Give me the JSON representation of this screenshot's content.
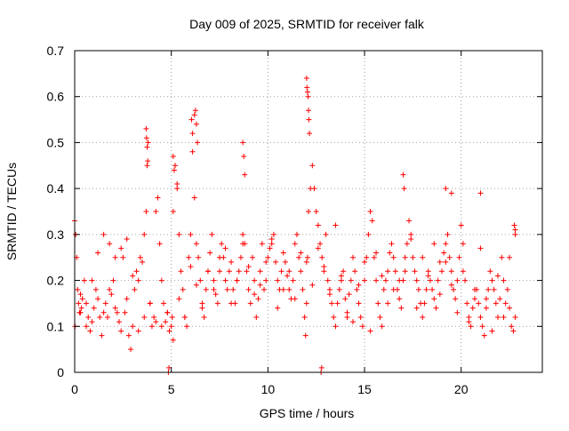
{
  "chart_data": {
    "type": "scatter",
    "title": "Day 009 of 2025, SRMTID for receiver falk",
    "xlabel": "GPS time / hours",
    "ylabel": "SRMTID / TECUs",
    "xlim": [
      0,
      24.2
    ],
    "ylim": [
      0,
      0.7
    ],
    "xticks": [
      0,
      5,
      10,
      15,
      20
    ],
    "xtick_labels": [
      "0",
      "5",
      "10",
      "15",
      "20"
    ],
    "yticks": [
      0,
      0.1,
      0.2,
      0.3,
      0.4,
      0.5,
      0.6,
      0.7
    ],
    "ytick_labels": [
      "0",
      "0.1",
      "0.2",
      "0.3",
      "0.4",
      "0.5",
      "0.6",
      "0.7"
    ],
    "grid": true,
    "marker": "+",
    "marker_color": "#ff0000",
    "series": [
      {
        "name": "SRMTID",
        "x": [
          0.0,
          0.05,
          0.1,
          0.15,
          0.2,
          0.25,
          0.3,
          0.35,
          0.4,
          0.5,
          0.6,
          0.7,
          0.8,
          0.9,
          1.0,
          1.1,
          1.2,
          1.3,
          1.4,
          1.5,
          1.6,
          1.7,
          1.8,
          1.9,
          2.0,
          2.1,
          2.2,
          2.3,
          2.4,
          2.5,
          2.6,
          2.7,
          2.8,
          2.9,
          3.0,
          3.1,
          3.2,
          3.3,
          3.4,
          3.5,
          3.6,
          3.7,
          3.75,
          3.8,
          3.9,
          4.0,
          4.1,
          4.2,
          4.3,
          4.4,
          4.5,
          4.6,
          4.7,
          4.8,
          4.9,
          5.0,
          5.05,
          5.1,
          5.2,
          5.3,
          5.4,
          5.5,
          5.6,
          5.7,
          5.8,
          5.9,
          6.0,
          6.1,
          6.2,
          6.3,
          6.4,
          6.5,
          6.6,
          6.7,
          6.8,
          6.9,
          7.0,
          7.1,
          7.2,
          7.3,
          7.4,
          7.5,
          7.6,
          7.7,
          7.8,
          7.9,
          8.0,
          8.1,
          8.2,
          8.3,
          8.4,
          8.5,
          8.6,
          8.7,
          8.8,
          8.9,
          9.0,
          9.1,
          9.2,
          9.3,
          9.4,
          9.5,
          9.6,
          9.7,
          9.8,
          9.9,
          10.0,
          10.1,
          10.2,
          10.3,
          10.4,
          10.5,
          10.6,
          10.7,
          10.8,
          10.9,
          11.0,
          11.1,
          11.2,
          11.3,
          11.4,
          11.5,
          11.6,
          11.7,
          11.8,
          11.9,
          11.95,
          12.0,
          12.05,
          12.1,
          12.2,
          12.3,
          12.4,
          12.5,
          12.6,
          12.7,
          12.8,
          12.9,
          13.0,
          13.1,
          13.2,
          13.3,
          13.4,
          13.5,
          13.6,
          13.7,
          13.8,
          13.9,
          14.0,
          14.1,
          14.2,
          14.3,
          14.4,
          14.5,
          14.6,
          14.7,
          14.8,
          14.9,
          15.0,
          15.1,
          15.2,
          15.3,
          15.4,
          15.5,
          15.6,
          15.7,
          15.8,
          15.9,
          16.0,
          16.1,
          16.2,
          16.3,
          16.4,
          16.5,
          16.6,
          16.7,
          16.8,
          16.9,
          17.0,
          17.1,
          17.2,
          17.3,
          17.4,
          17.5,
          17.6,
          17.7,
          17.8,
          17.9,
          18.0,
          18.1,
          18.2,
          18.3,
          18.4,
          18.5,
          18.6,
          18.7,
          18.8,
          18.9,
          19.0,
          19.1,
          19.2,
          19.3,
          19.4,
          19.5,
          19.6,
          19.7,
          19.8,
          19.9,
          20.0,
          20.1,
          20.2,
          20.3,
          20.4,
          20.5,
          20.6,
          20.7,
          20.8,
          20.9,
          21.0,
          21.1,
          21.2,
          21.3,
          21.4,
          21.5,
          21.6,
          21.7,
          21.8,
          21.9,
          22.0,
          22.1,
          22.2,
          22.3,
          22.4,
          22.5,
          22.6,
          22.7,
          22.8,
          0.02,
          0.3,
          0.6,
          0.9,
          1.2,
          1.5,
          1.8,
          2.1,
          2.4,
          2.7,
          3.0,
          3.3,
          3.6,
          3.9,
          4.2,
          4.5,
          4.8,
          5.1,
          5.4,
          5.7,
          6.0,
          6.3,
          6.6,
          6.9,
          7.2,
          7.5,
          7.8,
          8.1,
          8.4,
          8.7,
          9.0,
          9.3,
          9.6,
          9.9,
          10.2,
          10.5,
          10.8,
          11.1,
          11.4,
          11.7,
          12.0,
          12.3,
          12.6,
          12.9,
          13.2,
          13.5,
          13.8,
          14.1,
          14.4,
          14.7,
          15.0,
          15.3,
          15.6,
          15.9,
          16.2,
          16.5,
          16.8,
          17.1,
          17.4,
          17.7,
          18.0,
          18.3,
          18.6,
          18.9,
          19.2,
          19.5,
          19.8,
          20.1,
          20.4,
          20.7,
          21.0,
          21.3,
          21.6,
          21.9,
          22.2,
          22.5,
          22.8,
          3.7,
          3.72,
          3.75,
          3.78,
          5.1,
          5.15,
          5.3,
          6.05,
          6.1,
          6.2,
          6.25,
          6.3,
          6.35,
          8.7,
          8.75,
          8.8,
          12.0,
          12.02,
          12.05,
          12.08,
          12.1,
          12.12,
          12.15,
          4.85,
          4.88,
          12.75,
          12.78,
          17.0,
          17.05,
          19.2,
          19.5,
          21.0,
          22.75,
          22.8
        ],
        "y": [
          0.33,
          0.3,
          0.25,
          0.18,
          0.15,
          0.13,
          0.17,
          0.14,
          0.16,
          0.2,
          0.1,
          0.12,
          0.09,
          0.11,
          0.14,
          0.18,
          0.16,
          0.12,
          0.08,
          0.13,
          0.15,
          0.12,
          0.18,
          0.17,
          0.2,
          0.14,
          0.13,
          0.11,
          0.09,
          0.25,
          0.13,
          0.16,
          0.08,
          0.05,
          0.1,
          0.18,
          0.22,
          0.2,
          0.25,
          0.24,
          0.3,
          0.35,
          0.45,
          0.5,
          0.15,
          0.1,
          0.12,
          0.35,
          0.38,
          0.28,
          0.2,
          0.15,
          0.11,
          0.13,
          0.09,
          0.1,
          0.12,
          0.35,
          0.45,
          0.4,
          0.3,
          0.22,
          0.18,
          0.12,
          0.1,
          0.25,
          0.3,
          0.48,
          0.38,
          0.28,
          0.25,
          0.2,
          0.15,
          0.12,
          0.18,
          0.22,
          0.26,
          0.3,
          0.2,
          0.17,
          0.15,
          0.22,
          0.28,
          0.25,
          0.2,
          0.18,
          0.22,
          0.24,
          0.18,
          0.15,
          0.2,
          0.22,
          0.25,
          0.3,
          0.28,
          0.22,
          0.18,
          0.15,
          0.25,
          0.2,
          0.12,
          0.16,
          0.22,
          0.28,
          0.18,
          0.2,
          0.25,
          0.27,
          0.28,
          0.3,
          0.24,
          0.2,
          0.18,
          0.22,
          0.26,
          0.24,
          0.21,
          0.18,
          0.16,
          0.2,
          0.28,
          0.3,
          0.25,
          0.22,
          0.18,
          0.12,
          0.08,
          0.15,
          0.25,
          0.35,
          0.4,
          0.45,
          0.4,
          0.35,
          0.32,
          0.28,
          0.25,
          0.22,
          0.3,
          0.2,
          0.18,
          0.15,
          0.12,
          0.1,
          0.15,
          0.18,
          0.2,
          0.22,
          0.16,
          0.12,
          0.17,
          0.2,
          0.25,
          0.22,
          0.18,
          0.15,
          0.12,
          0.1,
          0.2,
          0.25,
          0.3,
          0.35,
          0.33,
          0.25,
          0.2,
          0.15,
          0.12,
          0.1,
          0.18,
          0.2,
          0.22,
          0.26,
          0.28,
          0.25,
          0.22,
          0.18,
          0.16,
          0.14,
          0.2,
          0.25,
          0.28,
          0.33,
          0.3,
          0.25,
          0.22,
          0.2,
          0.18,
          0.15,
          0.12,
          0.15,
          0.18,
          0.22,
          0.2,
          0.18,
          0.16,
          0.14,
          0.2,
          0.24,
          0.22,
          0.26,
          0.28,
          0.3,
          0.25,
          0.22,
          0.18,
          0.16,
          0.2,
          0.25,
          0.32,
          0.28,
          0.2,
          0.15,
          0.12,
          0.1,
          0.14,
          0.16,
          0.18,
          0.15,
          0.12,
          0.1,
          0.08,
          0.14,
          0.18,
          0.22,
          0.2,
          0.18,
          0.15,
          0.12,
          0.16,
          0.25,
          0.2,
          0.15,
          0.18,
          0.14,
          0.1,
          0.09,
          0.12,
          0.1,
          0.13,
          0.15,
          0.2,
          0.26,
          0.3,
          0.28,
          0.25,
          0.27,
          0.29,
          0.21,
          0.09,
          0.12,
          0.15,
          0.11,
          0.1,
          0.13,
          0.07,
          0.16,
          0.12,
          0.23,
          0.19,
          0.14,
          0.22,
          0.18,
          0.25,
          0.27,
          0.15,
          0.2,
          0.28,
          0.23,
          0.17,
          0.19,
          0.24,
          0.29,
          0.14,
          0.18,
          0.22,
          0.16,
          0.26,
          0.24,
          0.19,
          0.27,
          0.23,
          0.17,
          0.32,
          0.21,
          0.13,
          0.11,
          0.19,
          0.24,
          0.09,
          0.26,
          0.21,
          0.15,
          0.18,
          0.2,
          0.22,
          0.29,
          0.14,
          0.25,
          0.21,
          0.28,
          0.17,
          0.24,
          0.19,
          0.13,
          0.22,
          0.11,
          0.18,
          0.27,
          0.16,
          0.09,
          0.21,
          0.12,
          0.25,
          0.3,
          0.53,
          0.51,
          0.49,
          0.46,
          0.47,
          0.44,
          0.41,
          0.55,
          0.52,
          0.56,
          0.57,
          0.54,
          0.5,
          0.5,
          0.47,
          0.43,
          0.64,
          0.62,
          0.61,
          0.6,
          0.57,
          0.55,
          0.52,
          0.0,
          0.01,
          0.0,
          0.01,
          0.43,
          0.4,
          0.4,
          0.39,
          0.39,
          0.32,
          0.31
        ]
      }
    ]
  }
}
